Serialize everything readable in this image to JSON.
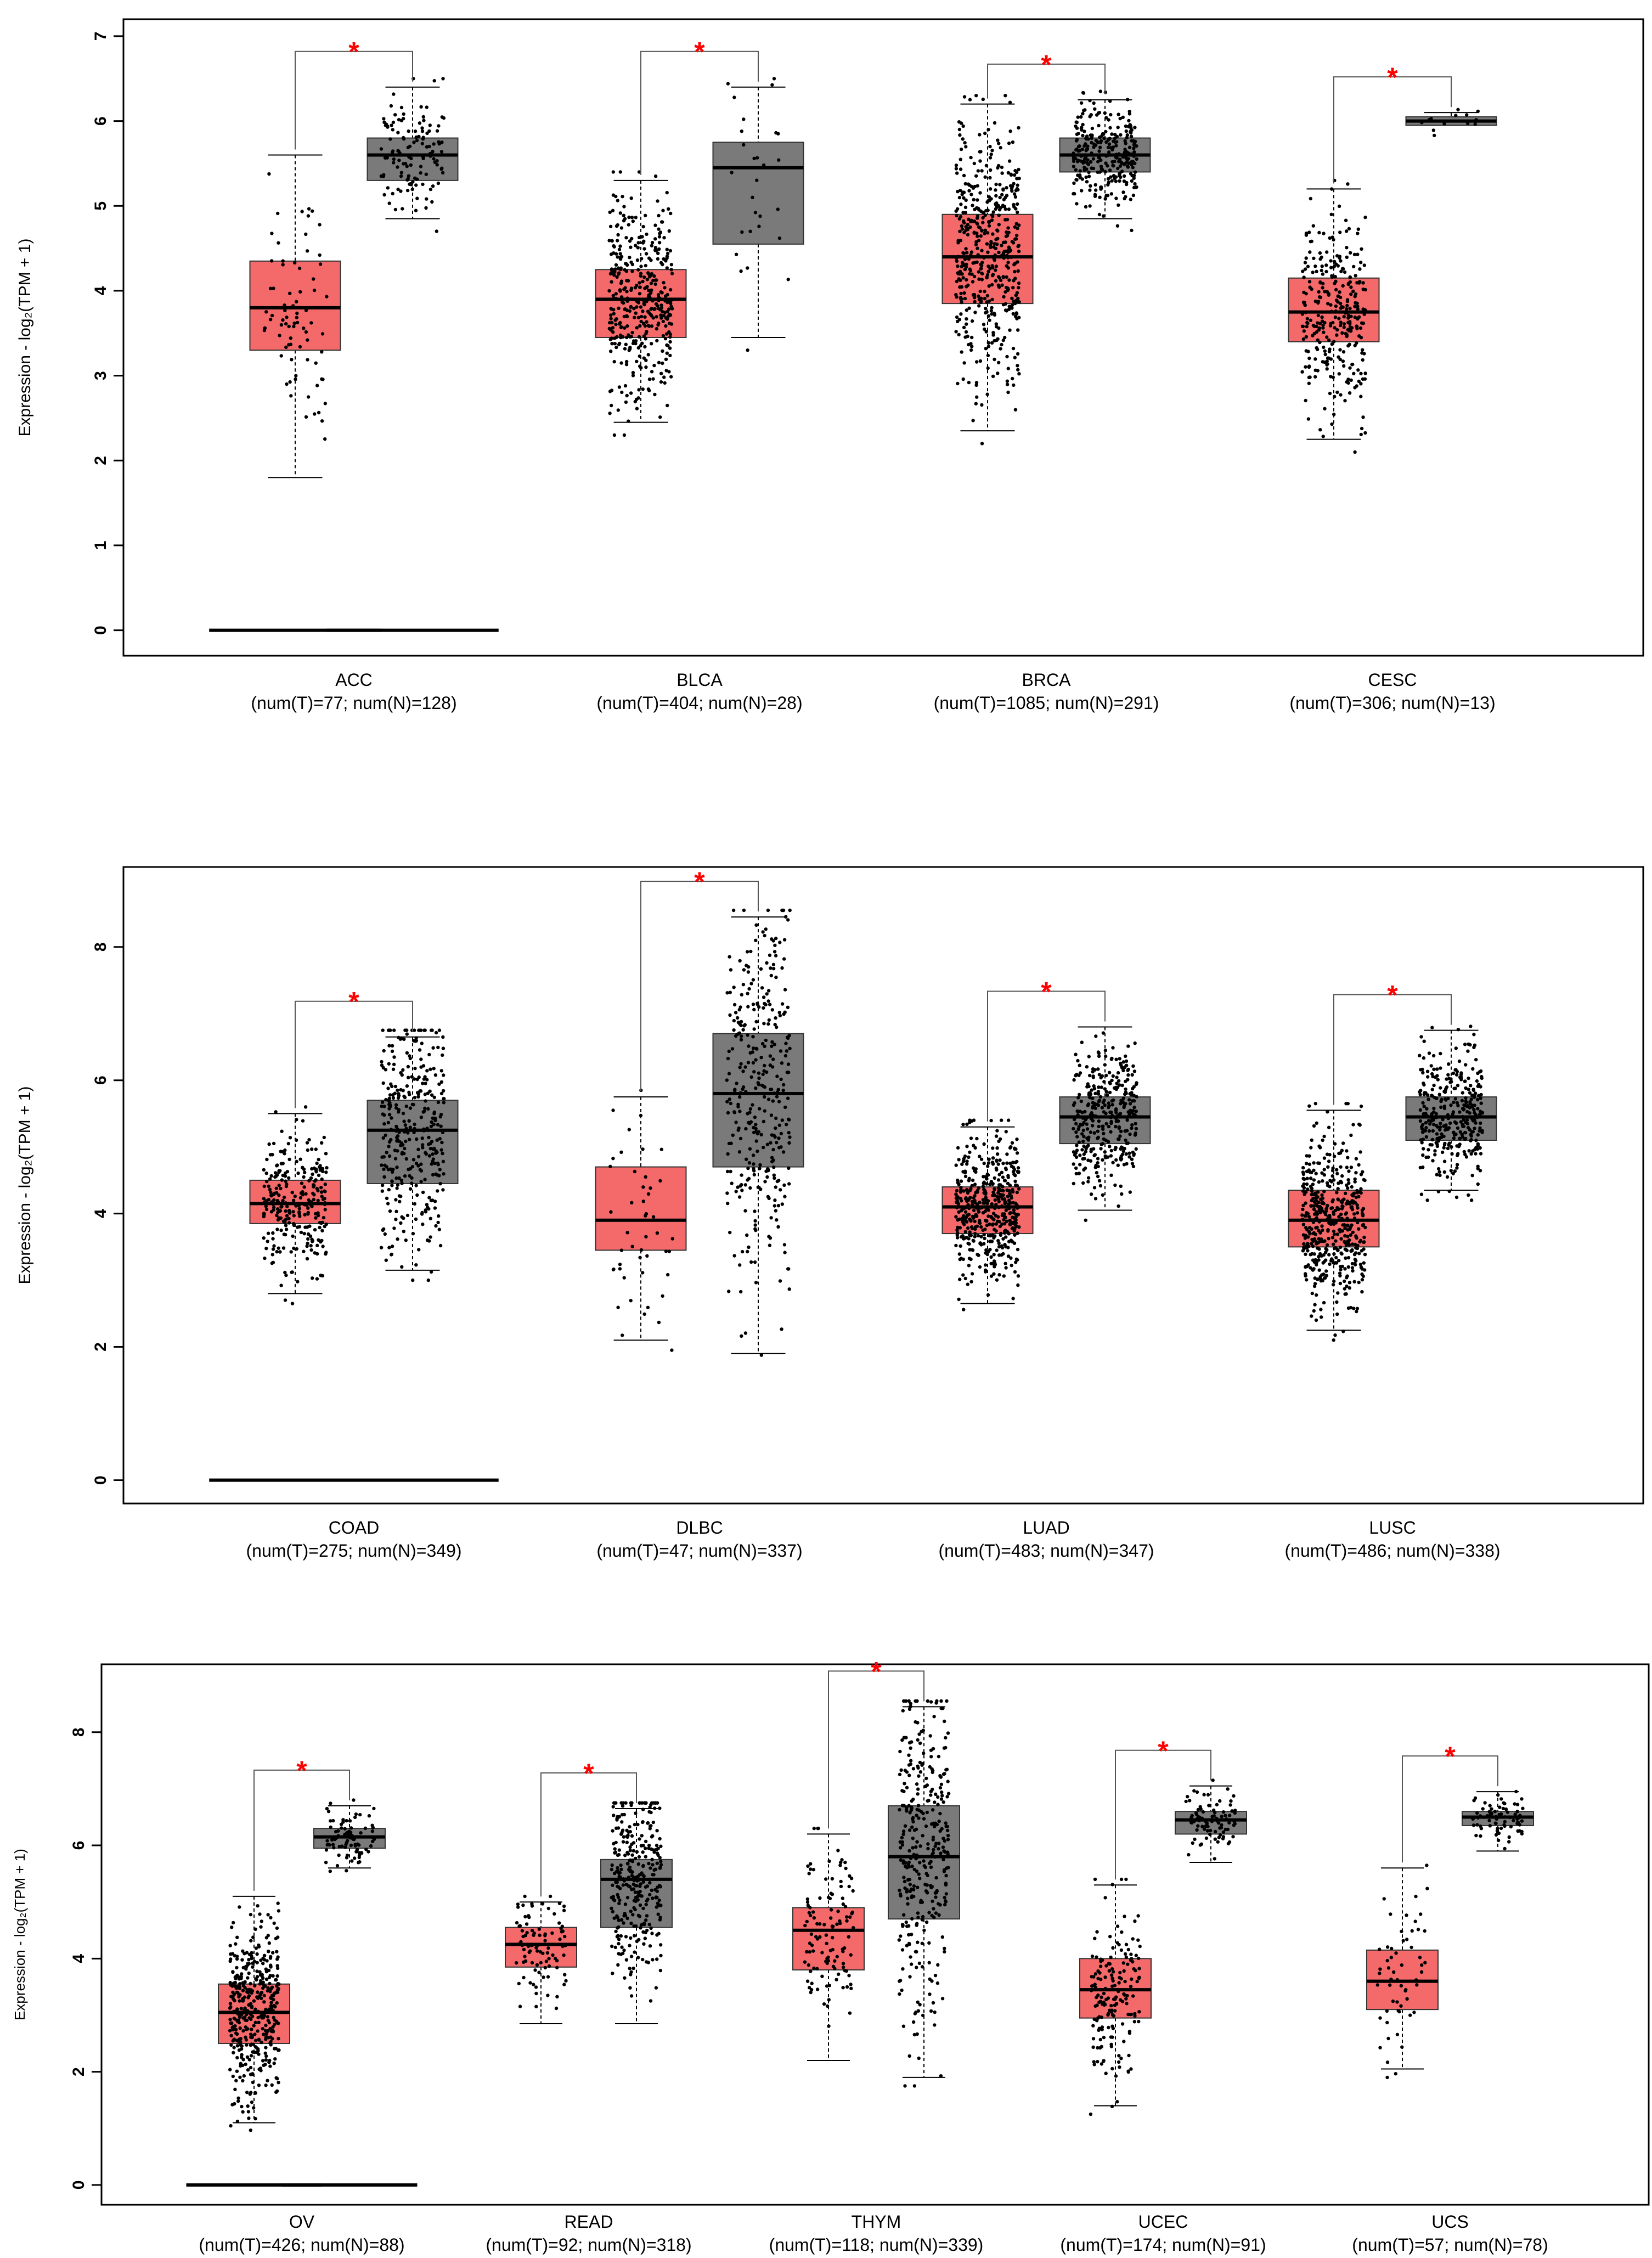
{
  "colors": {
    "tumor": "#f46a6a",
    "normal": "#7a7a7a",
    "star": "#ff0000",
    "dot": "#000000"
  },
  "chart_data": [
    {
      "type": "box",
      "ylabel": "Expression - log₂(TPM + 1)",
      "ylim": [
        -0.3,
        7.2
      ],
      "yticks": [
        0,
        1,
        2,
        3,
        4,
        5,
        6,
        7
      ],
      "series": [
        {
          "name": "T",
          "color": "#f46a6a"
        },
        {
          "name": "N",
          "color": "#7a7a7a"
        }
      ],
      "groups": [
        {
          "label": "ACC",
          "sub": "(num(T)=77; num(N)=128)",
          "significant": true,
          "star": "*",
          "tumor": {
            "min": 1.8,
            "q1": 3.3,
            "median": 3.8,
            "q3": 4.35,
            "max": 5.6,
            "n": 77
          },
          "normal": {
            "min": 4.85,
            "q1": 5.3,
            "median": 5.6,
            "q3": 5.8,
            "max": 6.4,
            "n": 128
          },
          "zero_line": true
        },
        {
          "label": "BLCA",
          "sub": "(num(T)=404; num(N)=28)",
          "significant": true,
          "star": "*",
          "tumor": {
            "min": 2.45,
            "q1": 3.45,
            "median": 3.9,
            "q3": 4.25,
            "max": 5.3,
            "n": 404
          },
          "normal": {
            "min": 3.45,
            "q1": 4.55,
            "median": 5.45,
            "q3": 5.75,
            "max": 6.4,
            "n": 28
          },
          "zero_line": false
        },
        {
          "label": "BRCA",
          "sub": "(num(T)=1085; num(N)=291)",
          "significant": true,
          "star": "*",
          "tumor": {
            "min": 2.35,
            "q1": 3.85,
            "median": 4.4,
            "q3": 4.9,
            "max": 6.2,
            "n": 1085
          },
          "normal": {
            "min": 4.85,
            "q1": 5.4,
            "median": 5.6,
            "q3": 5.8,
            "max": 6.25,
            "n": 291
          },
          "zero_line": false
        },
        {
          "label": "CESC",
          "sub": "(num(T)=306; num(N)=13)",
          "significant": true,
          "star": "*",
          "tumor": {
            "min": 2.25,
            "q1": 3.4,
            "median": 3.75,
            "q3": 4.15,
            "max": 5.2,
            "n": 306
          },
          "normal": {
            "min": 5.95,
            "q1": 5.95,
            "median": 6.0,
            "q3": 6.05,
            "max": 6.1,
            "n": 13
          },
          "zero_line": false
        }
      ]
    },
    {
      "type": "box",
      "ylabel": "Expression - log₂(TPM + 1)",
      "ylim": [
        -0.35,
        9.2
      ],
      "yticks": [
        0,
        2,
        4,
        6,
        8
      ],
      "series": [
        {
          "name": "T",
          "color": "#f46a6a"
        },
        {
          "name": "N",
          "color": "#7a7a7a"
        }
      ],
      "groups": [
        {
          "label": "COAD",
          "sub": "(num(T)=275; num(N)=349)",
          "significant": true,
          "star": "*",
          "tumor": {
            "min": 2.8,
            "q1": 3.85,
            "median": 4.15,
            "q3": 4.5,
            "max": 5.5,
            "n": 275
          },
          "normal": {
            "min": 3.15,
            "q1": 4.45,
            "median": 5.25,
            "q3": 5.7,
            "max": 6.65,
            "n": 349
          },
          "zero_line": true
        },
        {
          "label": "DLBC",
          "sub": "(num(T)=47; num(N)=337)",
          "significant": true,
          "star": "*",
          "tumor": {
            "min": 2.1,
            "q1": 3.45,
            "median": 3.9,
            "q3": 4.7,
            "max": 5.75,
            "n": 47
          },
          "normal": {
            "min": 1.9,
            "q1": 4.7,
            "median": 5.8,
            "q3": 6.7,
            "max": 8.45,
            "n": 337
          },
          "zero_line": false
        },
        {
          "label": "LUAD",
          "sub": "(num(T)=483; num(N)=347)",
          "significant": true,
          "star": "*",
          "tumor": {
            "min": 2.65,
            "q1": 3.7,
            "median": 4.1,
            "q3": 4.4,
            "max": 5.3,
            "n": 483
          },
          "normal": {
            "min": 4.05,
            "q1": 5.05,
            "median": 5.45,
            "q3": 5.75,
            "max": 6.8,
            "n": 347
          },
          "zero_line": false
        },
        {
          "label": "LUSC",
          "sub": "(num(T)=486; num(N)=338)",
          "significant": true,
          "star": "*",
          "tumor": {
            "min": 2.25,
            "q1": 3.5,
            "median": 3.9,
            "q3": 4.35,
            "max": 5.55,
            "n": 486
          },
          "normal": {
            "min": 4.35,
            "q1": 5.1,
            "median": 5.45,
            "q3": 5.75,
            "max": 6.75,
            "n": 338
          },
          "zero_line": false
        }
      ]
    },
    {
      "type": "box",
      "ylabel": "Expression - log₂(TPM + 1)",
      "ylim": [
        -0.35,
        9.2
      ],
      "yticks": [
        0,
        2,
        4,
        6,
        8
      ],
      "series": [
        {
          "name": "T",
          "color": "#f46a6a"
        },
        {
          "name": "N",
          "color": "#7a7a7a"
        }
      ],
      "groups": [
        {
          "label": "OV",
          "sub": "(num(T)=426; num(N)=88)",
          "significant": true,
          "star": "*",
          "tumor": {
            "min": 1.1,
            "q1": 2.5,
            "median": 3.05,
            "q3": 3.55,
            "max": 5.1,
            "n": 426
          },
          "normal": {
            "min": 5.6,
            "q1": 5.95,
            "median": 6.15,
            "q3": 6.3,
            "max": 6.7,
            "n": 88
          },
          "zero_line": true
        },
        {
          "label": "READ",
          "sub": "(num(T)=92; num(N)=318)",
          "significant": true,
          "star": "*",
          "tumor": {
            "min": 2.85,
            "q1": 3.85,
            "median": 4.25,
            "q3": 4.55,
            "max": 5.0,
            "n": 92
          },
          "normal": {
            "min": 2.85,
            "q1": 4.55,
            "median": 5.4,
            "q3": 5.75,
            "max": 6.65,
            "n": 318
          },
          "zero_line": false
        },
        {
          "label": "THYM",
          "sub": "(num(T)=118; num(N)=339)",
          "significant": true,
          "star": "*",
          "tumor": {
            "min": 2.2,
            "q1": 3.8,
            "median": 4.5,
            "q3": 4.9,
            "max": 6.2,
            "n": 118
          },
          "normal": {
            "min": 1.9,
            "q1": 4.7,
            "median": 5.8,
            "q3": 6.7,
            "max": 8.45,
            "n": 339
          },
          "zero_line": false
        },
        {
          "label": "UCEC",
          "sub": "(num(T)=174; num(N)=91)",
          "significant": true,
          "star": "*",
          "tumor": {
            "min": 1.4,
            "q1": 2.95,
            "median": 3.45,
            "q3": 4.0,
            "max": 5.3,
            "n": 174
          },
          "normal": {
            "min": 5.7,
            "q1": 6.2,
            "median": 6.45,
            "q3": 6.6,
            "max": 7.05,
            "n": 91
          },
          "zero_line": false
        },
        {
          "label": "UCS",
          "sub": "(num(T)=57; num(N)=78)",
          "significant": true,
          "star": "*",
          "tumor": {
            "min": 2.05,
            "q1": 3.1,
            "median": 3.6,
            "q3": 4.15,
            "max": 5.6,
            "n": 57
          },
          "normal": {
            "min": 5.9,
            "q1": 6.35,
            "median": 6.5,
            "q3": 6.6,
            "max": 6.95,
            "n": 78
          },
          "zero_line": false
        }
      ]
    }
  ]
}
